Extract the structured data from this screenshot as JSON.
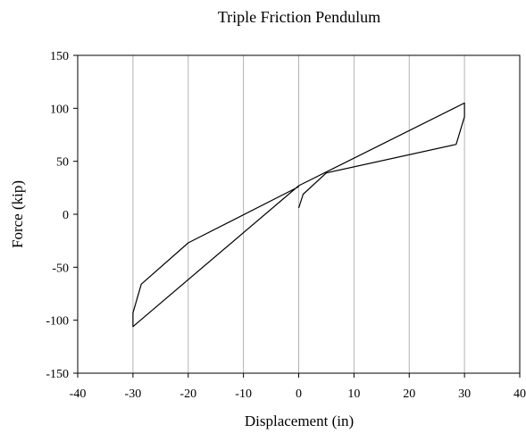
{
  "chart_data": {
    "type": "line",
    "title": "Triple Friction Pendulum",
    "xlabel": "Displacement (in)",
    "ylabel": "Force (kip)",
    "xlim": [
      -40,
      40
    ],
    "ylim": [
      -150,
      150
    ],
    "xticks": [
      -40,
      -30,
      -20,
      -10,
      0,
      10,
      20,
      30,
      40
    ],
    "yticks": [
      -150,
      -100,
      -50,
      0,
      50,
      100,
      150
    ],
    "grid": "vertical",
    "legend": "none",
    "line_color": "#000000",
    "grid_color": "#b3b3b3",
    "series": [
      {
        "x": [
          0,
          0.8,
          5,
          28.5,
          30,
          30,
          0,
          -30,
          -30,
          -28.5,
          -20,
          0
        ],
        "y": [
          6,
          19,
          39,
          66,
          92,
          105,
          27,
          -106,
          -93,
          -66,
          -27,
          26
        ]
      }
    ]
  }
}
